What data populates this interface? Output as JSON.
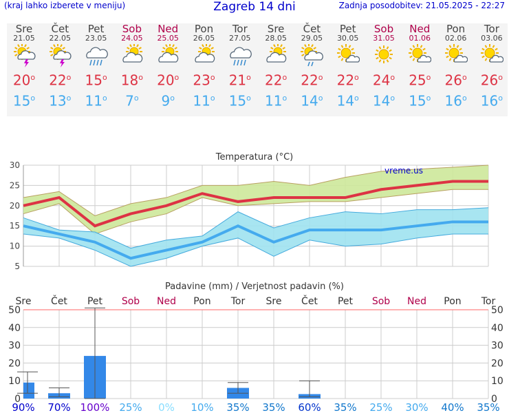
{
  "header": {
    "menu_hint": "(kraj lahko izberete v meniju)",
    "title": "Zagreb 14 dni",
    "updated": "Zadnja posodobitev: 21.05.2025 - 22:27"
  },
  "degree_symbol": "o",
  "days": [
    {
      "name": "Sre",
      "date": "21.05",
      "weekend": false,
      "icon": "sun-cloud-storm-icon",
      "max": "20",
      "min": "15"
    },
    {
      "name": "Čet",
      "date": "22.05",
      "weekend": false,
      "icon": "sun-cloud-storm-icon",
      "max": "22",
      "min": "13"
    },
    {
      "name": "Pet",
      "date": "23.05",
      "weekend": false,
      "icon": "cloud-rain-icon",
      "max": "15",
      "min": "11"
    },
    {
      "name": "Sob",
      "date": "24.05",
      "weekend": true,
      "icon": "sun-cloud-icon",
      "max": "18",
      "min": "7"
    },
    {
      "name": "Ned",
      "date": "25.05",
      "weekend": true,
      "icon": "sun-cloud-icon",
      "max": "20",
      "min": "9"
    },
    {
      "name": "Pon",
      "date": "26.05",
      "weekend": false,
      "icon": "sun-cloud-icon",
      "max": "23",
      "min": "11"
    },
    {
      "name": "Tor",
      "date": "27.05",
      "weekend": false,
      "icon": "cloud-rain-icon",
      "max": "21",
      "min": "15"
    },
    {
      "name": "Sre",
      "date": "28.05",
      "weekend": false,
      "icon": "sun-cloud-icon",
      "max": "22",
      "min": "11"
    },
    {
      "name": "Čet",
      "date": "29.05",
      "weekend": false,
      "icon": "sun-cloud-shower-icon",
      "max": "22",
      "min": "14"
    },
    {
      "name": "Pet",
      "date": "30.05",
      "weekend": false,
      "icon": "sun-small-cloud-icon",
      "max": "22",
      "min": "14"
    },
    {
      "name": "Sob",
      "date": "31.05",
      "weekend": true,
      "icon": "sun-icon",
      "max": "24",
      "min": "14"
    },
    {
      "name": "Ned",
      "date": "01.06",
      "weekend": true,
      "icon": "sun-small-cloud-icon",
      "max": "25",
      "min": "15"
    },
    {
      "name": "Pon",
      "date": "02.06",
      "weekend": false,
      "icon": "sun-small-cloud-icon",
      "max": "26",
      "min": "16"
    },
    {
      "name": "Tor",
      "date": "03.06",
      "weekend": false,
      "icon": "sun-small-cloud-icon",
      "max": "26",
      "min": "16"
    }
  ],
  "chart_data": [
    {
      "type": "line",
      "title": "Temperatura (°C)",
      "watermark": "vreme.us",
      "ylim": [
        5,
        30
      ],
      "yticks": [
        5,
        10,
        15,
        20,
        25,
        30
      ],
      "grid": true,
      "series": [
        {
          "name": "max",
          "color": "#dd3344",
          "values": [
            20,
            22,
            15,
            18,
            20,
            23,
            21,
            22,
            22,
            22,
            24,
            25,
            26,
            26
          ],
          "band_low": [
            18,
            20.5,
            13,
            16,
            18,
            22,
            20,
            20.5,
            21,
            21,
            22,
            23,
            24,
            24
          ],
          "band_high": [
            22,
            23.5,
            17.5,
            20.5,
            22,
            25,
            25,
            26,
            25,
            27,
            28.5,
            29,
            29.5,
            30
          ]
        },
        {
          "name": "min",
          "color": "#44aaee",
          "values": [
            15,
            13,
            11,
            7,
            9,
            11,
            15,
            11,
            14,
            14,
            14,
            15,
            16,
            16
          ],
          "band_low": [
            13,
            12,
            9,
            5,
            7,
            10,
            12,
            7.5,
            11.5,
            10,
            10.5,
            12,
            13,
            13
          ],
          "band_high": [
            17,
            14,
            13.5,
            9.5,
            11.5,
            12.5,
            18.5,
            14.5,
            17,
            18.5,
            18,
            19,
            19,
            19.5
          ]
        }
      ]
    },
    {
      "type": "bar",
      "title": "Padavine (mm) / Verjetnost padavin (%)",
      "categories": [
        "Sre",
        "Čet",
        "Pet",
        "Sob",
        "Ned",
        "Pon",
        "Tor",
        "Sre",
        "Čet",
        "Pet",
        "Sob",
        "Ned",
        "Pon",
        "Tor"
      ],
      "weekend": [
        false,
        false,
        false,
        true,
        true,
        false,
        false,
        false,
        false,
        false,
        true,
        true,
        false,
        false
      ],
      "ylim": [
        0,
        50
      ],
      "yticks": [
        0,
        10,
        20,
        30,
        40,
        50
      ],
      "values": [
        9,
        3,
        24,
        0,
        0,
        0,
        6,
        0,
        2.5,
        0,
        0,
        0,
        0,
        0
      ],
      "error_high": [
        15,
        6,
        51,
        0,
        0,
        0,
        9,
        0,
        10,
        0,
        0,
        0,
        0,
        0
      ],
      "error_low": [
        3,
        1,
        0,
        0,
        0,
        0,
        3,
        0,
        1,
        0,
        0,
        0,
        0,
        0
      ],
      "probability": [
        "90%",
        "70%",
        "100%",
        "25%",
        "0%",
        "10%",
        "35%",
        "35%",
        "60%",
        "35%",
        "25%",
        "30%",
        "40%",
        "35%"
      ],
      "probability_colors": [
        "#0000cc",
        "#0000cc",
        "#6600cc",
        "#44aaee",
        "#88ddff",
        "#44aaee",
        "#1177cc",
        "#1177cc",
        "#0033cc",
        "#1177cc",
        "#44aaee",
        "#44aaee",
        "#1177cc",
        "#1177cc"
      ]
    }
  ]
}
